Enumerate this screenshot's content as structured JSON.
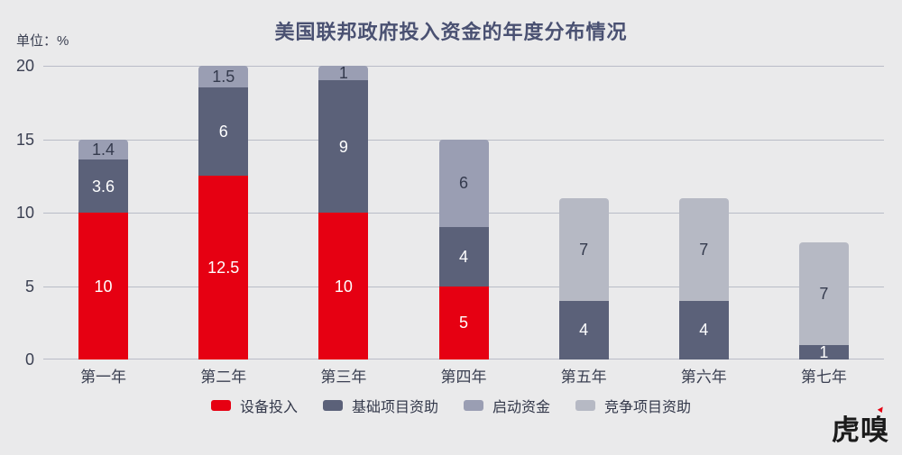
{
  "title": "美国联邦政府投入资金的年度分布情况",
  "unit_label": "单位：%",
  "logo_text": "虎嗅",
  "colors": {
    "background": "#eaeaeb",
    "title_text": "#4a5172",
    "axis_text": "#3b4052",
    "gridline": "#b9bcc7"
  },
  "chart_data": {
    "type": "bar",
    "stacked": true,
    "title": "美国联邦政府投入资金的年度分布情况",
    "ylabel": "单位：%",
    "ylim": [
      0,
      20
    ],
    "yticks": [
      0,
      5,
      10,
      15,
      20
    ],
    "grid": true,
    "legend_position": "bottom",
    "categories": [
      "第一年",
      "第二年",
      "第三年",
      "第四年",
      "第五年",
      "第六年",
      "第七年"
    ],
    "series": [
      {
        "name": "设备投入",
        "color": "#e60012",
        "label_color": "#ffffff",
        "values": [
          10,
          12.5,
          10,
          5,
          null,
          null,
          null
        ]
      },
      {
        "name": "基础项目资助",
        "color": "#5b6179",
        "label_color": "#ffffff",
        "values": [
          3.6,
          6,
          9,
          4,
          4,
          4,
          1
        ]
      },
      {
        "name": "启动资金",
        "color": "#9a9eb3",
        "label_color": "#343a4d",
        "values": [
          1.4,
          1.5,
          1,
          6,
          null,
          null,
          null
        ]
      },
      {
        "name": "竞争项目资助",
        "color": "#b6b9c4",
        "label_color": "#343a4d",
        "values": [
          null,
          null,
          null,
          null,
          7,
          7,
          7
        ]
      }
    ]
  }
}
